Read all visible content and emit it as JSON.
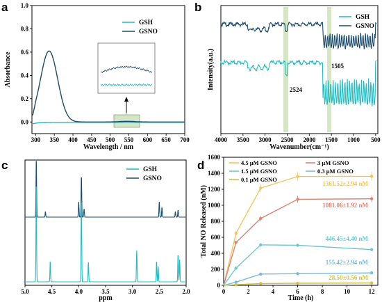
{
  "colors": {
    "gsh": "#1fbcc1",
    "gsno": "#1a4a6c",
    "band": "#c8dcb0",
    "c45": "#f2c55e",
    "c3": "#d98575",
    "c15": "#6fc8cf",
    "c03": "#7ab9d8",
    "c01": "#d4c14a"
  },
  "panels": {
    "a": {
      "letter": "a",
      "ylabel": "Absorbance",
      "xlabel": "Wavelength / nm",
      "legend": [
        "GSH",
        "GSNO"
      ],
      "inset_arrow": "↑"
    },
    "b": {
      "letter": "b",
      "ylabel": "Intensity(a.u.)",
      "xlabel": "Wavenumber(cm⁻¹)",
      "legend": [
        "GSH",
        "GSNO"
      ],
      "peak1": "2524",
      "peak2": "1505"
    },
    "c": {
      "letter": "c",
      "xlabel": "ppm",
      "legend": [
        "GSH",
        "GSNO"
      ]
    },
    "d": {
      "letter": "d",
      "ylabel": "Total NO Released (nM)",
      "xlabel": "Time (h)",
      "legend": [
        "4.5 μM GSNO",
        "3 μM GSNO",
        "1.5 μM GSNO",
        "0.3 μM GSNO",
        "0.1 μM GSNO"
      ],
      "annotations": [
        "1361.52±2.94 nM",
        "1081.06±1.92 nM",
        "446.45±4.40 nM",
        "155.42±2.94 nM",
        "28.50±0.56 nM"
      ]
    }
  },
  "chart_data": [
    {
      "type": "line",
      "panel": "a",
      "xlabel": "Wavelength / nm",
      "ylabel": "Absorbance",
      "xlim": [
        290,
        700
      ],
      "ylim": [
        -0.1,
        1.0
      ],
      "xticks": [
        300,
        350,
        400,
        450,
        500,
        550,
        600,
        650,
        700
      ],
      "yticks": [
        0.0,
        0.2,
        0.4,
        0.6,
        0.8,
        1.0
      ],
      "series": [
        {
          "name": "GSH",
          "x": [
            290,
            320,
            350,
            400,
            450,
            500,
            550,
            600,
            650,
            700
          ],
          "y": [
            -0.02,
            -0.01,
            -0.005,
            -0.003,
            -0.003,
            -0.003,
            -0.003,
            -0.002,
            -0.002,
            -0.002
          ]
        },
        {
          "name": "GSNO",
          "x": [
            290,
            300,
            310,
            320,
            330,
            336,
            345,
            355,
            365,
            375,
            390,
            410,
            430,
            460,
            500,
            550,
            600,
            650,
            700
          ],
          "y": [
            0.03,
            0.15,
            0.35,
            0.52,
            0.6,
            0.61,
            0.58,
            0.48,
            0.34,
            0.2,
            0.08,
            0.03,
            0.01,
            0.003,
            0.003,
            0.008,
            0.002,
            0.001,
            0.0
          ]
        }
      ]
    },
    {
      "type": "line",
      "panel": "b",
      "xlabel": "Wavenumber(cm⁻¹)",
      "ylabel": "Intensity(a.u.)",
      "xlim": [
        4000,
        450
      ],
      "xticks": [
        4000,
        3500,
        3000,
        2500,
        2000,
        1500,
        1000,
        500
      ],
      "series": [
        {
          "name": "GSH",
          "x": [
            4000,
            3500,
            3250,
            3000,
            2524,
            2000,
            1700,
            1600,
            1505,
            1400,
            1200,
            1000,
            800,
            600,
            500
          ],
          "y": [
            0.62,
            0.61,
            0.56,
            0.58,
            0.52,
            0.6,
            0.58,
            0.2,
            0.12,
            0.25,
            0.3,
            0.18,
            0.22,
            0.3,
            0.4
          ]
        },
        {
          "name": "GSNO",
          "x": [
            4000,
            3500,
            3250,
            3000,
            2524,
            2000,
            1700,
            1600,
            1505,
            1400,
            1200,
            1000,
            800,
            600,
            500
          ],
          "y": [
            0.93,
            0.92,
            0.85,
            0.87,
            0.88,
            0.9,
            0.89,
            0.62,
            0.68,
            0.7,
            0.75,
            0.66,
            0.72,
            0.78,
            0.82
          ]
        }
      ]
    },
    {
      "type": "line",
      "panel": "c",
      "xlabel": "ppm",
      "xlim": [
        5.0,
        2.0
      ],
      "xticks": [
        5.0,
        4.5,
        4.0,
        3.5,
        3.0,
        2.5,
        2.0
      ],
      "series": [
        {
          "name": "GSH",
          "peaks_ppm": [
            4.79,
            4.53,
            3.95,
            3.82,
            2.92,
            2.55,
            2.15
          ]
        },
        {
          "name": "GSNO",
          "peaks_ppm": [
            4.79,
            4.62,
            4.0,
            3.9,
            2.5,
            2.45,
            2.15
          ]
        }
      ]
    },
    {
      "type": "line",
      "panel": "d",
      "xlabel": "Time (h)",
      "ylabel": "Total NO Released (nM)",
      "xlim": [
        0,
        12.5
      ],
      "ylim": [
        0,
        1600
      ],
      "xticks": [
        0,
        2,
        4,
        6,
        8,
        10,
        12
      ],
      "yticks": [
        0,
        200,
        400,
        600,
        800,
        1000,
        1200,
        1400,
        1600
      ],
      "x": [
        0,
        1,
        3,
        6,
        12
      ],
      "series": [
        {
          "name": "4.5 μM GSNO",
          "values": [
            0,
            650,
            1215,
            1360,
            1362
          ]
        },
        {
          "name": "3 μM GSNO",
          "values": [
            0,
            535,
            835,
            1075,
            1081
          ]
        },
        {
          "name": "1.5 μM GSNO",
          "values": [
            0,
            215,
            505,
            500,
            446
          ]
        },
        {
          "name": "0.3 μM GSNO",
          "values": [
            0,
            40,
            140,
            145,
            155
          ]
        },
        {
          "name": "0.1 μM GSNO",
          "values": [
            0,
            8,
            22,
            26,
            28.5
          ]
        }
      ]
    }
  ]
}
